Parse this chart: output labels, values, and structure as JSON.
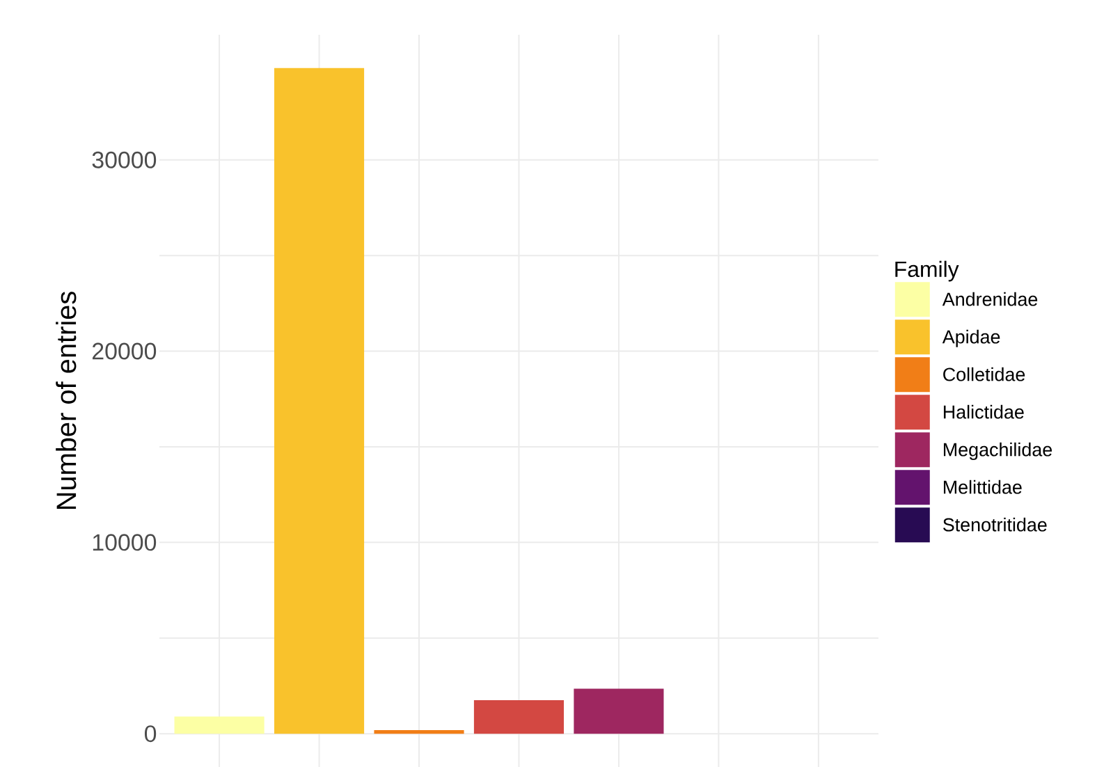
{
  "chart_data": {
    "type": "bar",
    "ylabel": "Number of entries",
    "legend_title": "Family",
    "legend": "right",
    "grid": true,
    "categories": [
      null,
      null,
      null,
      null,
      null,
      null,
      null
    ],
    "series": [
      {
        "name": "Andrenidae",
        "color": "#fcffa4",
        "values": [
          900,
          null,
          null,
          null,
          null,
          null,
          null
        ]
      },
      {
        "name": "Apidae",
        "color": "#f9c22c",
        "values": [
          null,
          34800,
          null,
          null,
          null,
          null,
          null
        ]
      },
      {
        "name": "Colletidae",
        "color": "#f17e17",
        "values": [
          null,
          null,
          190,
          null,
          null,
          null,
          null
        ]
      },
      {
        "name": "Halictidae",
        "color": "#d34842",
        "values": [
          null,
          null,
          null,
          1750,
          null,
          null,
          null
        ]
      },
      {
        "name": "Megachilidae",
        "color": "#9e2760",
        "values": [
          null,
          null,
          null,
          null,
          2350,
          null,
          null
        ]
      },
      {
        "name": "Melittidae",
        "color": "#63136d",
        "values": [
          null,
          null,
          null,
          null,
          null,
          0,
          null
        ]
      },
      {
        "name": "Stenotritidae",
        "color": "#280b53",
        "values": [
          null,
          null,
          null,
          null,
          null,
          null,
          0
        ]
      }
    ],
    "ylim": [
      -1740,
      36540
    ],
    "yticks": [
      0,
      10000,
      20000,
      30000
    ]
  }
}
